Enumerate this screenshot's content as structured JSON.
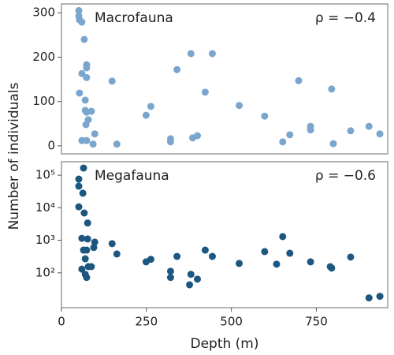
{
  "chart_data": [
    {
      "type": "scatter",
      "annotations": [
        "Macrofauna",
        "ρ = −0.4"
      ],
      "ylabel": "Number of individuals",
      "color": "#7aa6cd",
      "xlim": [
        0,
        960
      ],
      "ylim": [
        -18,
        320
      ],
      "yticks": [
        0,
        100,
        200,
        300
      ],
      "log_y": false,
      "x": [
        51,
        51,
        53,
        60,
        67,
        74,
        74,
        74,
        60,
        53,
        70,
        70,
        88,
        79,
        74,
        98,
        60,
        74,
        93,
        163,
        149,
        249,
        263,
        340,
        381,
        444,
        423,
        523,
        598,
        698,
        651,
        672,
        733,
        733,
        795,
        800,
        851,
        905,
        937,
        386,
        400,
        321,
        321,
        72
      ],
      "values": [
        305,
        293,
        284,
        279,
        240,
        183,
        176,
        154,
        163,
        119,
        103,
        80,
        78,
        59,
        76,
        27,
        12,
        12,
        4,
        4,
        146,
        69,
        89,
        172,
        208,
        208,
        121,
        91,
        67,
        147,
        9,
        25,
        44,
        36,
        128,
        5,
        34,
        44,
        27,
        18,
        23,
        16,
        9,
        48
      ]
    },
    {
      "type": "scatter",
      "annotations": [
        "Megafauna",
        "ρ = −0.6"
      ],
      "xlabel": "Depth (m)",
      "color": "#1d5780",
      "xlim": [
        0,
        960
      ],
      "xticks": [
        0,
        250,
        500,
        750
      ],
      "ylim": [
        8.5,
        260000
      ],
      "log_y": true,
      "yticks": [
        {
          "value": 100,
          "label": "10²"
        },
        {
          "value": 1000,
          "label": "10³"
        },
        {
          "value": 10000,
          "label": "10⁴"
        },
        {
          "value": 100000,
          "label": "10⁵"
        }
      ],
      "x": [
        65,
        51,
        51,
        63,
        51,
        67,
        77,
        60,
        77,
        65,
        74,
        98,
        95,
        70,
        79,
        70,
        60,
        88,
        74,
        163,
        149,
        249,
        263,
        340,
        321,
        321,
        423,
        444,
        381,
        377,
        400,
        523,
        598,
        651,
        633,
        672,
        733,
        795,
        791,
        851,
        905,
        937
      ],
      "values": [
        166000,
        76000,
        46000,
        28000,
        10700,
        6900,
        3400,
        1150,
        1100,
        500,
        500,
        880,
        600,
        270,
        155,
        90,
        130,
        155,
        72,
        380,
        790,
        218,
        260,
        320,
        112,
        72,
        500,
        320,
        90,
        43,
        64,
        195,
        450,
        1300,
        185,
        400,
        218,
        140,
        155,
        305,
        17,
        19
      ]
    }
  ]
}
